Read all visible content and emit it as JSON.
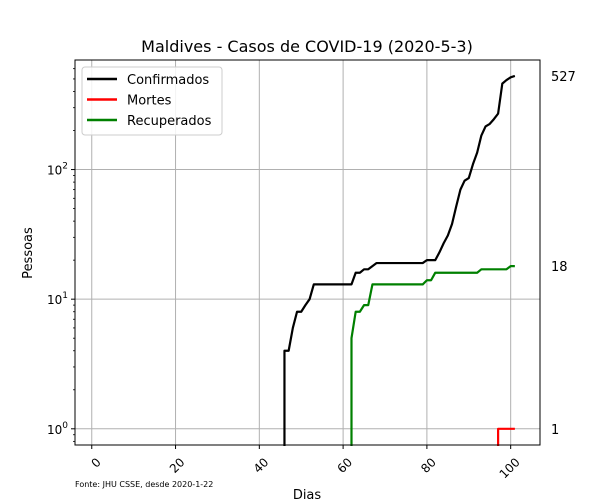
{
  "chart_data": {
    "type": "line",
    "title": "Maldives - Casos de COVID-19 (2020-5-3)",
    "xlabel": "Dias",
    "ylabel": "Pessoas",
    "source": "Fonte: JHU CSSE, desde 2020-1-22",
    "xlim": [
      -4,
      107
    ],
    "ylim": [
      0.75,
      700
    ],
    "yscale": "log",
    "grid": true,
    "legend_position": "top-left",
    "x_ticks": [
      0,
      20,
      40,
      60,
      80,
      100
    ],
    "y_ticks": [
      {
        "value": 1,
        "base": "10",
        "exp": "0"
      },
      {
        "value": 10,
        "base": "10",
        "exp": "1"
      },
      {
        "value": 100,
        "base": "10",
        "exp": "2"
      }
    ],
    "series": [
      {
        "name": "Confirmados",
        "color": "#000000",
        "end_label": "527",
        "points": [
          [
            46,
            4
          ],
          [
            47,
            4
          ],
          [
            48,
            6
          ],
          [
            49,
            8
          ],
          [
            50,
            8
          ],
          [
            51,
            9
          ],
          [
            52,
            10
          ],
          [
            53,
            13
          ],
          [
            62,
            13
          ],
          [
            63,
            16
          ],
          [
            64,
            16
          ],
          [
            65,
            17
          ],
          [
            66,
            17
          ],
          [
            67,
            18
          ],
          [
            68,
            19
          ],
          [
            79,
            19
          ],
          [
            80,
            20
          ],
          [
            81,
            20
          ],
          [
            82,
            20
          ],
          [
            83,
            23
          ],
          [
            84,
            27
          ],
          [
            85,
            31
          ],
          [
            86,
            38
          ],
          [
            87,
            52
          ],
          [
            88,
            70
          ],
          [
            89,
            82
          ],
          [
            90,
            86
          ],
          [
            91,
            110
          ],
          [
            92,
            135
          ],
          [
            93,
            183
          ],
          [
            94,
            215
          ],
          [
            95,
            225
          ],
          [
            96,
            245
          ],
          [
            97,
            270
          ],
          [
            98,
            460
          ],
          [
            99,
            490
          ],
          [
            100,
            515
          ],
          [
            101,
            527
          ]
        ]
      },
      {
        "name": "Mortes",
        "color": "#ff0000",
        "end_label": "1",
        "points": [
          [
            97,
            1
          ],
          [
            98,
            1
          ],
          [
            99,
            1
          ],
          [
            100,
            1
          ],
          [
            101,
            1
          ]
        ]
      },
      {
        "name": "Recuperados",
        "color": "#008000",
        "end_label": "18",
        "points": [
          [
            62,
            5
          ],
          [
            63,
            8
          ],
          [
            64,
            8
          ],
          [
            65,
            9
          ],
          [
            66,
            9
          ],
          [
            67,
            13
          ],
          [
            79,
            13
          ],
          [
            80,
            14
          ],
          [
            81,
            14
          ],
          [
            82,
            16
          ],
          [
            92,
            16
          ],
          [
            93,
            17
          ],
          [
            99,
            17
          ],
          [
            100,
            18
          ],
          [
            101,
            18
          ]
        ]
      }
    ]
  }
}
